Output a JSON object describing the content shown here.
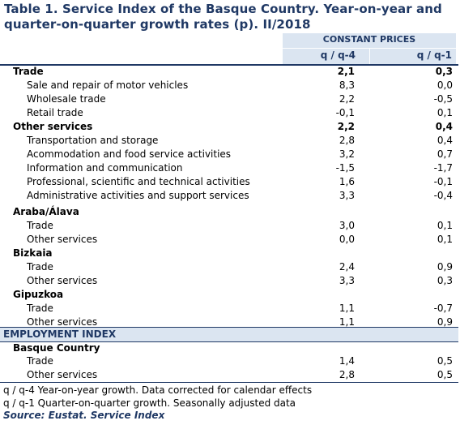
{
  "title": "Table 1. Service Index of the Basque Country. Year-on-year and quarter-on-quarter growth rates (p). II/2018",
  "header": {
    "group": "CONSTANT PRICES",
    "col1": "q / q-4",
    "col2": "q / q-1"
  },
  "rows": [
    {
      "label": "Trade",
      "v1": "2,1",
      "v2": "0,3",
      "style": "bold"
    },
    {
      "label": "Sale and repair of motor vehicles",
      "v1": "8,3",
      "v2": "0,0",
      "style": "sub"
    },
    {
      "label": "Wholesale trade",
      "v1": "2,2",
      "v2": "-0,5",
      "style": "sub"
    },
    {
      "label": "Retail trade",
      "v1": "-0,1",
      "v2": "0,1",
      "style": "sub"
    },
    {
      "label": "Other services",
      "v1": "2,2",
      "v2": "0,4",
      "style": "bold"
    },
    {
      "label": "Transportation and storage",
      "v1": "2,8",
      "v2": "0,4",
      "style": "sub"
    },
    {
      "label": "Acommodation and food service activities",
      "v1": "3,2",
      "v2": "0,7",
      "style": "sub"
    },
    {
      "label": "Information and communication",
      "v1": "-1,5",
      "v2": "-1,7",
      "style": "sub"
    },
    {
      "label": "Professional, scientific and technical activities",
      "v1": "1,6",
      "v2": "-0,1",
      "style": "sub"
    },
    {
      "label": "Administrative activities and support services",
      "v1": "3,3",
      "v2": "-0,4",
      "style": "sub"
    },
    {
      "label": "Araba/Álava",
      "v1": "",
      "v2": "",
      "style": "grp"
    },
    {
      "label": "Trade",
      "v1": "3,0",
      "v2": "0,1",
      "style": "sub"
    },
    {
      "label": "Other services",
      "v1": "0,0",
      "v2": "0,1",
      "style": "sub"
    },
    {
      "label": "Bizkaia",
      "v1": "",
      "v2": "",
      "style": "grp"
    },
    {
      "label": "Trade",
      "v1": "2,4",
      "v2": "0,9",
      "style": "sub"
    },
    {
      "label": "Other services",
      "v1": "3,3",
      "v2": "0,3",
      "style": "sub"
    },
    {
      "label": "Gipuzkoa",
      "v1": "",
      "v2": "",
      "style": "grp"
    },
    {
      "label": "Trade",
      "v1": "1,1",
      "v2": "-0,7",
      "style": "sub"
    },
    {
      "label": "Other services",
      "v1": "1,1",
      "v2": "0,9",
      "style": "sub"
    }
  ],
  "employment": {
    "band_label": "EMPLOYMENT INDEX",
    "rows": [
      {
        "label": "Basque Country",
        "v1": "",
        "v2": "",
        "style": "grp"
      },
      {
        "label": "Trade",
        "v1": "1,4",
        "v2": "0,5",
        "style": "sub"
      },
      {
        "label": "Other services",
        "v1": "2,8",
        "v2": "0,5",
        "style": "sub"
      }
    ]
  },
  "notes": [
    "q / q-4 Year-on-year growth. Data corrected for calendar effects",
    "q / q-1 Quarter-on-quarter growth. Seasonally adjusted data"
  ],
  "source": "Source: Eustat. Service Index"
}
